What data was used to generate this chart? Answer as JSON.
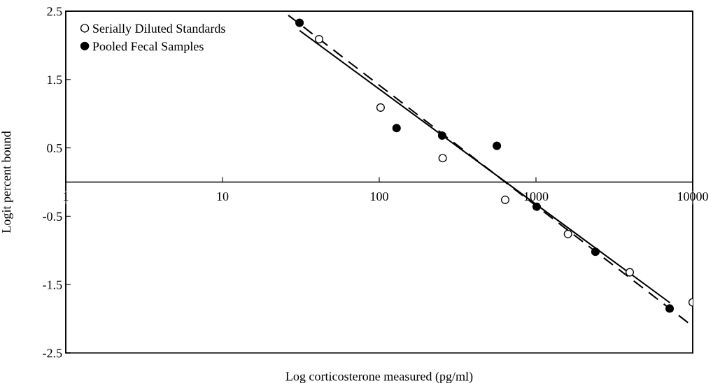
{
  "chart_data": {
    "type": "scatter",
    "xlabel": "Log corticosterone measured (pg/ml)",
    "ylabel": "Logit percent bound",
    "log": "x",
    "xlim": [
      1,
      10000
    ],
    "xticks": [
      1,
      10,
      100,
      1000,
      10000
    ],
    "ylim": [
      -2.5,
      2.5
    ],
    "yticks": [
      -2.5,
      -1.5,
      -0.5,
      0.5,
      1.5,
      2.5
    ],
    "legend": "top left",
    "grid": false,
    "series": [
      {
        "name": "Serially Diluted Standards",
        "marker": "circle",
        "color": "#ffffff",
        "x": [
          41.3,
          102,
          254,
          636,
          1600,
          3965,
          10000
        ],
        "values": [
          2.09,
          1.09,
          0.35,
          -0.26,
          -0.76,
          -1.32,
          -1.76
        ]
      },
      {
        "name": "Pooled Fecal Samples",
        "marker": "circle",
        "color": "#000000",
        "x": [
          31,
          129,
          252,
          563,
          1010,
          2395,
          7125
        ],
        "values": [
          2.33,
          0.79,
          0.68,
          0.53,
          -0.36,
          -1.02,
          -1.85
        ]
      },
      {
        "type": "line",
        "line_style": "solid",
        "marker": "none",
        "color": "#000000",
        "x": [
          31.3,
          7100
        ],
        "values": [
          2.21,
          -1.76
        ]
      },
      {
        "type": "line",
        "line_style": "dashed",
        "marker": "none",
        "color": "#000000",
        "x": [
          26.3,
          9500
        ],
        "values": [
          2.44,
          -2.07
        ]
      }
    ]
  }
}
